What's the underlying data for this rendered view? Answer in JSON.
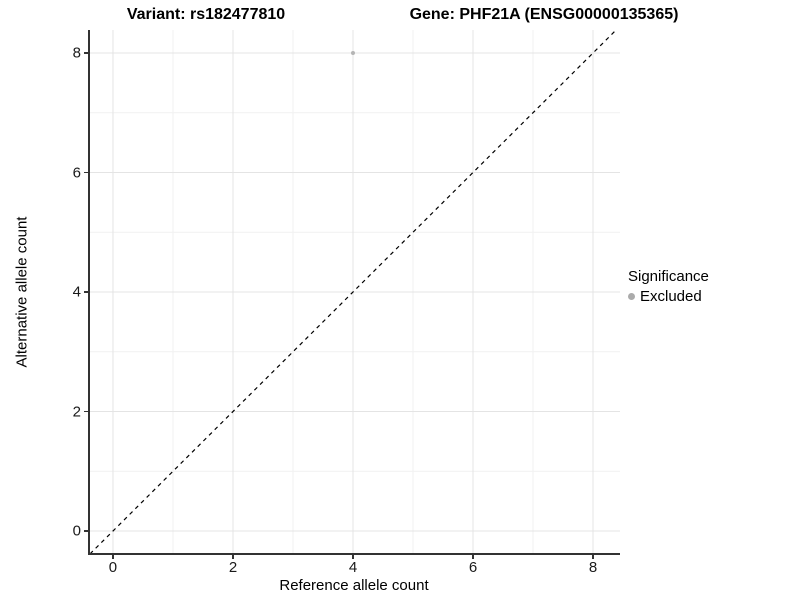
{
  "chart_data": {
    "type": "scatter",
    "title_left": "Variant: rs182477810",
    "title_right": "Gene: PHF21A (ENSG00000135365)",
    "xlabel": "Reference allele count",
    "ylabel": "Alternative allele count",
    "xlim": [
      -0.383,
      8.45
    ],
    "ylim": [
      -0.368,
      8.385
    ],
    "x_ticks": [
      0,
      2,
      4,
      6,
      8
    ],
    "y_ticks": [
      0,
      2,
      4,
      6,
      8
    ],
    "x_minor_ticks": [
      1,
      3,
      5,
      7
    ],
    "y_minor_ticks": [
      1,
      3,
      5,
      7
    ],
    "grid": "major and minor gridlines, light gray, white background",
    "identity_line": {
      "style": "dashed",
      "color": "#000000",
      "from": [
        -0.383,
        -0.383
      ],
      "to": [
        8.45,
        8.45
      ]
    },
    "series": [
      {
        "name": "Excluded",
        "color": "#b5b5b5",
        "point_radius": 2,
        "points": [
          [
            4,
            8
          ]
        ]
      }
    ],
    "legend": {
      "position": "right",
      "title": "Significance",
      "entries": [
        {
          "label": "Excluded",
          "color": "#ababab"
        }
      ]
    },
    "colors": {
      "grid_major": "#e4e4e4",
      "grid_minor": "#f1f1f1",
      "axis_line": "#333333",
      "text": "#000000"
    }
  }
}
